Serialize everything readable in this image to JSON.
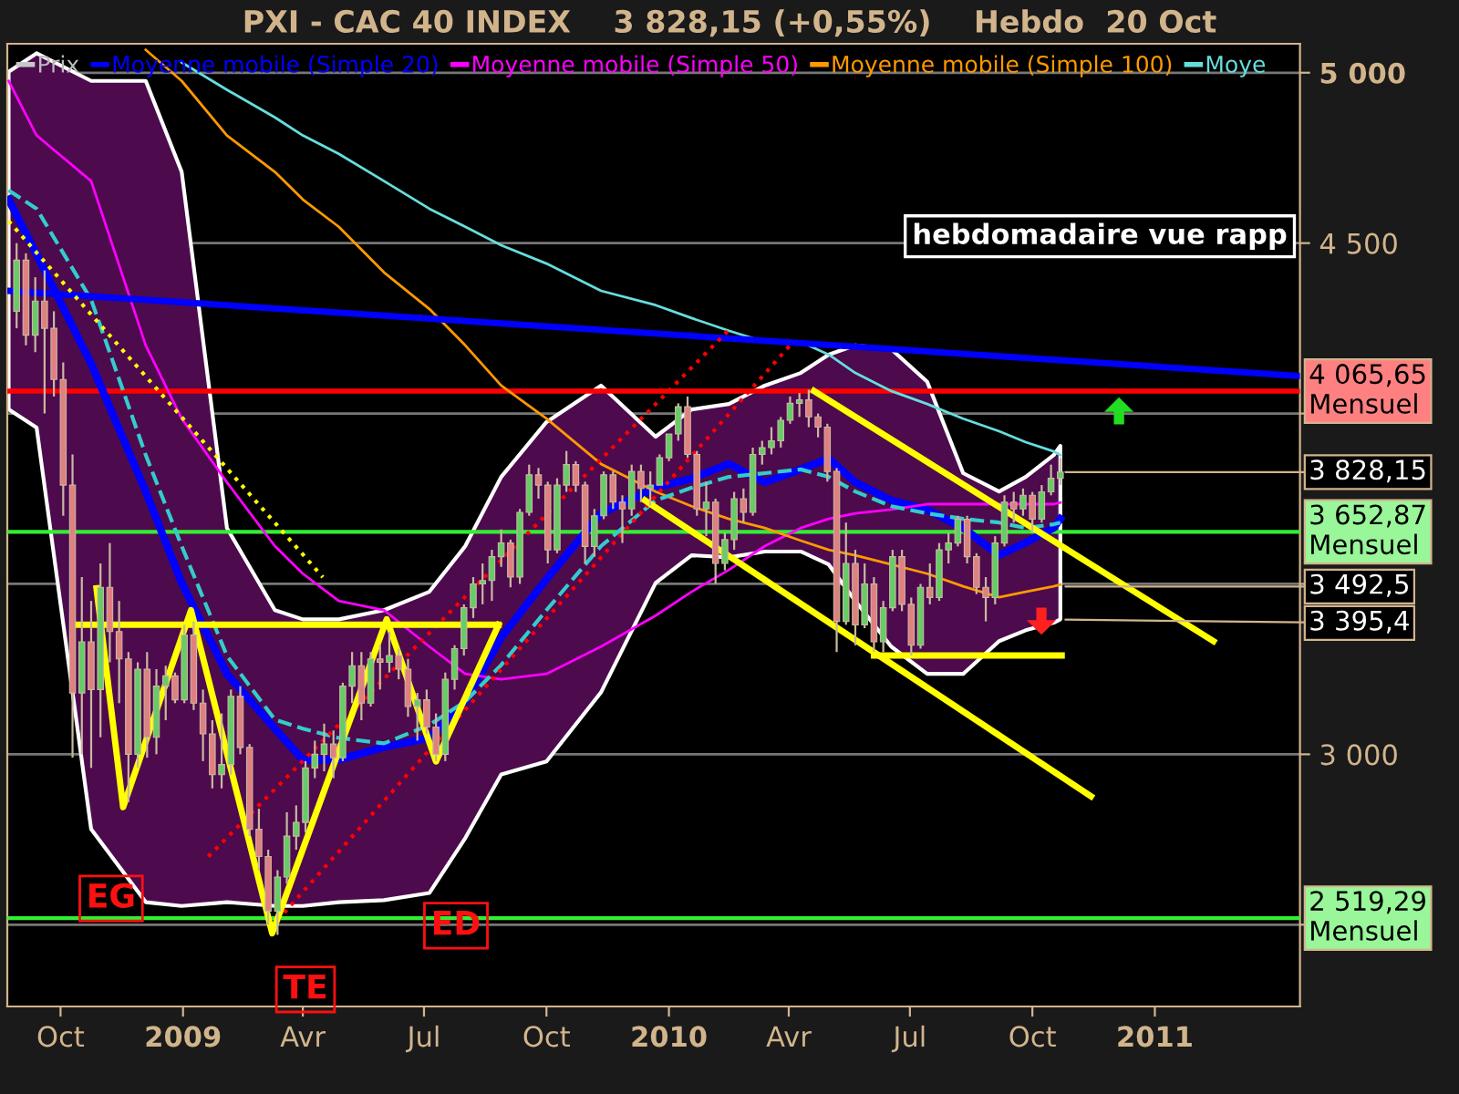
{
  "chart_data": {
    "type": "candlestick",
    "title": "PXI - CAC 40 INDEX    3 828,15 (+0,55%)    Hebdo  20 Oct",
    "xlim": [
      "2008-08-22",
      "2011-04-20"
    ],
    "xticks": [
      {
        "value": "2008-10-01",
        "label": "Oct"
      },
      {
        "value": "2009-01-01",
        "label": "2009"
      },
      {
        "value": "2009-04-01",
        "label": "Avr"
      },
      {
        "value": "2009-07-01",
        "label": "Jul"
      },
      {
        "value": "2009-10-01",
        "label": "Oct"
      },
      {
        "value": "2010-01-01",
        "label": "2010"
      },
      {
        "value": "2010-04-01",
        "label": "Avr"
      },
      {
        "value": "2010-07-01",
        "label": "Jul"
      },
      {
        "value": "2010-10-01",
        "label": "Oct"
      },
      {
        "value": "2011-01-01",
        "label": "2011"
      }
    ],
    "ylim": [
      2260,
      5085
    ],
    "yticks": [
      {
        "value": 2500,
        "label": null
      },
      {
        "value": 3000,
        "label": "3 000"
      },
      {
        "value": 3500,
        "label": null
      },
      {
        "value": 4000,
        "label": null
      },
      {
        "value": 4500,
        "label": "4 500"
      },
      {
        "value": 5000,
        "label": "5 000"
      }
    ],
    "grid": "y",
    "legend": "top left",
    "marker": "none",
    "series": [
      {
        "name": "Prix",
        "type": "candlestick",
        "x": [
          "2008-08-29",
          "2008-09-05",
          "2008-09-12",
          "2008-09-19",
          "2008-09-26",
          "2008-10-03",
          "2008-10-10",
          "2008-10-17",
          "2008-10-24",
          "2008-10-31",
          "2008-11-07",
          "2008-11-14",
          "2008-11-21",
          "2008-11-28",
          "2008-12-05",
          "2008-12-12",
          "2008-12-19",
          "2008-12-26",
          "2009-01-02",
          "2009-01-09",
          "2009-01-16",
          "2009-01-23",
          "2009-01-30",
          "2009-02-06",
          "2009-02-13",
          "2009-02-20",
          "2009-02-27",
          "2009-03-06",
          "2009-03-13",
          "2009-03-20",
          "2009-03-27",
          "2009-04-03",
          "2009-04-10",
          "2009-04-17",
          "2009-04-24",
          "2009-05-01",
          "2009-05-08",
          "2009-05-15",
          "2009-05-22",
          "2009-05-29",
          "2009-06-05",
          "2009-06-12",
          "2009-06-19",
          "2009-06-26",
          "2009-07-03",
          "2009-07-10",
          "2009-07-17",
          "2009-07-24",
          "2009-07-31",
          "2009-08-07",
          "2009-08-14",
          "2009-08-21",
          "2009-08-28",
          "2009-09-04",
          "2009-09-11",
          "2009-09-18",
          "2009-09-25",
          "2009-10-02",
          "2009-10-09",
          "2009-10-16",
          "2009-10-23",
          "2009-10-30",
          "2009-11-06",
          "2009-11-13",
          "2009-11-20",
          "2009-11-27",
          "2009-12-04",
          "2009-12-11",
          "2009-12-18",
          "2009-12-25",
          "2010-01-01",
          "2010-01-08",
          "2010-01-15",
          "2010-01-22",
          "2010-01-29",
          "2010-02-05",
          "2010-02-12",
          "2010-02-19",
          "2010-02-26",
          "2010-03-05",
          "2010-03-12",
          "2010-03-19",
          "2010-03-26",
          "2010-04-02",
          "2010-04-09",
          "2010-04-16",
          "2010-04-23",
          "2010-04-30",
          "2010-05-07",
          "2010-05-14",
          "2010-05-21",
          "2010-05-28",
          "2010-06-04",
          "2010-06-11",
          "2010-06-18",
          "2010-06-25",
          "2010-07-02",
          "2010-07-09",
          "2010-07-16",
          "2010-07-23",
          "2010-07-30",
          "2010-08-06",
          "2010-08-13",
          "2010-08-20",
          "2010-08-27",
          "2010-09-03",
          "2010-09-10",
          "2010-09-17",
          "2010-09-24",
          "2010-10-01",
          "2010-10-08",
          "2010-10-15",
          "2010-10-22"
        ],
        "ohlc": [
          [
            4300,
            4500,
            4250,
            4450
          ],
          [
            4450,
            4470,
            4200,
            4230
          ],
          [
            4230,
            4400,
            4180,
            4330
          ],
          [
            4330,
            4420,
            4000,
            4250
          ],
          [
            4250,
            4300,
            4050,
            4100
          ],
          [
            4100,
            4150,
            3700,
            3790
          ],
          [
            3790,
            3880,
            2990,
            3180
          ],
          [
            3180,
            3520,
            3000,
            3330
          ],
          [
            3330,
            3450,
            2960,
            3190
          ],
          [
            3190,
            3560,
            3050,
            3490
          ],
          [
            3490,
            3620,
            3270,
            3360
          ],
          [
            3360,
            3450,
            3150,
            3280
          ],
          [
            3280,
            3300,
            2860,
            3000
          ],
          [
            3000,
            3270,
            2960,
            3250
          ],
          [
            3250,
            3300,
            2990,
            3050
          ],
          [
            3050,
            3250,
            3000,
            3200
          ],
          [
            3200,
            3260,
            3100,
            3230
          ],
          [
            3230,
            3240,
            3150,
            3160
          ],
          [
            3160,
            3380,
            3150,
            3350
          ],
          [
            3350,
            3390,
            3130,
            3150
          ],
          [
            3150,
            3190,
            2980,
            3060
          ],
          [
            3060,
            3100,
            2900,
            2940
          ],
          [
            2940,
            3120,
            2900,
            2970
          ],
          [
            2970,
            3190,
            2940,
            3170
          ],
          [
            3170,
            3200,
            3000,
            3020
          ],
          [
            3020,
            3030,
            2760,
            2780
          ],
          [
            2780,
            2840,
            2660,
            2700
          ],
          [
            2700,
            2720,
            2500,
            2540
          ],
          [
            2540,
            2660,
            2470,
            2640
          ],
          [
            2640,
            2830,
            2620,
            2760
          ],
          [
            2760,
            2850,
            2720,
            2800
          ],
          [
            2800,
            2980,
            2770,
            2960
          ],
          [
            2960,
            3040,
            2930,
            3000
          ],
          [
            3000,
            3090,
            2950,
            3030
          ],
          [
            3030,
            3070,
            2930,
            2990
          ],
          [
            2990,
            3210,
            2980,
            3200
          ],
          [
            3200,
            3300,
            3150,
            3260
          ],
          [
            3260,
            3300,
            3100,
            3150
          ],
          [
            3150,
            3300,
            3140,
            3280
          ],
          [
            3280,
            3320,
            3190,
            3270
          ],
          [
            3270,
            3360,
            3240,
            3290
          ],
          [
            3290,
            3310,
            3220,
            3250
          ],
          [
            3250,
            3280,
            3110,
            3140
          ],
          [
            3140,
            3180,
            3040,
            3160
          ],
          [
            3160,
            3190,
            3060,
            3080
          ],
          [
            3080,
            3120,
            2980,
            3000
          ],
          [
            3000,
            3240,
            2980,
            3220
          ],
          [
            3220,
            3320,
            3190,
            3310
          ],
          [
            3310,
            3440,
            3290,
            3430
          ],
          [
            3430,
            3520,
            3400,
            3500
          ],
          [
            3500,
            3560,
            3440,
            3510
          ],
          [
            3510,
            3600,
            3450,
            3580
          ],
          [
            3580,
            3660,
            3550,
            3620
          ],
          [
            3620,
            3630,
            3490,
            3520
          ],
          [
            3520,
            3720,
            3500,
            3710
          ],
          [
            3710,
            3850,
            3700,
            3820
          ],
          [
            3820,
            3840,
            3750,
            3790
          ],
          [
            3790,
            3800,
            3560,
            3600
          ],
          [
            3600,
            3810,
            3590,
            3790
          ],
          [
            3790,
            3890,
            3770,
            3850
          ],
          [
            3850,
            3860,
            3770,
            3790
          ],
          [
            3790,
            3800,
            3560,
            3610
          ],
          [
            3610,
            3720,
            3580,
            3700
          ],
          [
            3700,
            3830,
            3690,
            3820
          ],
          [
            3820,
            3830,
            3720,
            3740
          ],
          [
            3740,
            3760,
            3620,
            3720
          ],
          [
            3720,
            3850,
            3700,
            3830
          ],
          [
            3830,
            3850,
            3740,
            3780
          ],
          [
            3780,
            3830,
            3730,
            3790
          ],
          [
            3790,
            3880,
            3790,
            3870
          ],
          [
            3870,
            3940,
            3860,
            3940
          ],
          [
            3940,
            4030,
            3920,
            4020
          ],
          [
            4020,
            4050,
            3870,
            3880
          ],
          [
            3880,
            3890,
            3700,
            3720
          ],
          [
            3720,
            3800,
            3640,
            3740
          ],
          [
            3740,
            3750,
            3500,
            3560
          ],
          [
            3560,
            3650,
            3540,
            3630
          ],
          [
            3630,
            3770,
            3600,
            3750
          ],
          [
            3750,
            3780,
            3680,
            3710
          ],
          [
            3710,
            3900,
            3700,
            3880
          ],
          [
            3880,
            3920,
            3850,
            3900
          ],
          [
            3900,
            3960,
            3880,
            3920
          ],
          [
            3920,
            3990,
            3900,
            3980
          ],
          [
            3980,
            4050,
            3970,
            4030
          ],
          [
            4030,
            4060,
            3990,
            4040
          ],
          [
            4040,
            4070,
            3960,
            3990
          ],
          [
            3990,
            4000,
            3930,
            3960
          ],
          [
            3960,
            3970,
            3800,
            3830
          ],
          [
            3830,
            3840,
            3300,
            3390
          ],
          [
            3390,
            3680,
            3380,
            3560
          ],
          [
            3560,
            3600,
            3320,
            3380
          ],
          [
            3380,
            3560,
            3370,
            3500
          ],
          [
            3500,
            3520,
            3300,
            3330
          ],
          [
            3330,
            3450,
            3300,
            3430
          ],
          [
            3430,
            3600,
            3420,
            3580
          ],
          [
            3580,
            3600,
            3420,
            3440
          ],
          [
            3440,
            3460,
            3290,
            3320
          ],
          [
            3320,
            3500,
            3310,
            3490
          ],
          [
            3490,
            3560,
            3440,
            3460
          ],
          [
            3460,
            3620,
            3450,
            3600
          ],
          [
            3600,
            3650,
            3560,
            3620
          ],
          [
            3620,
            3700,
            3610,
            3690
          ],
          [
            3690,
            3700,
            3560,
            3580
          ],
          [
            3580,
            3590,
            3470,
            3490
          ],
          [
            3490,
            3520,
            3390,
            3460
          ],
          [
            3460,
            3640,
            3440,
            3620
          ],
          [
            3620,
            3760,
            3610,
            3740
          ],
          [
            3740,
            3770,
            3680,
            3720
          ],
          [
            3720,
            3780,
            3700,
            3760
          ],
          [
            3760,
            3770,
            3650,
            3690
          ],
          [
            3690,
            3790,
            3680,
            3770
          ],
          [
            3770,
            3850,
            3760,
            3810
          ],
          [
            3810,
            3870,
            3790,
            3828.15
          ]
        ]
      },
      {
        "name": "Moyenne mobile (Simple 20)",
        "type": "line",
        "color": "#0000ff",
        "x": [
          "2008-08-23",
          "2008-09-13",
          "2008-10-24",
          "2008-12-04",
          "2008-12-31",
          "2009-02-03",
          "2009-03-11",
          "2009-04-01",
          "2009-04-28",
          "2009-06-01",
          "2009-07-05",
          "2009-08-01",
          "2009-08-28",
          "2009-10-01",
          "2009-11-11",
          "2009-12-22",
          "2010-01-18",
          "2010-02-15",
          "2010-03-14",
          "2010-04-10",
          "2010-05-01",
          "2010-05-21",
          "2010-06-17",
          "2010-07-14",
          "2010-08-10",
          "2010-09-06",
          "2010-09-26",
          "2010-10-17",
          "2010-10-22"
        ],
        "values": [
          4628,
          4467,
          4146,
          3771,
          3503,
          3236,
          3075,
          2984,
          2984,
          3021,
          3048,
          3155,
          3343,
          3514,
          3707,
          3782,
          3809,
          3852,
          3798,
          3836,
          3868,
          3798,
          3745,
          3718,
          3664,
          3584,
          3621,
          3664,
          3691
        ],
        "lower": [
          4012,
          3959,
          2780,
          2566,
          2555,
          2566,
          2555,
          2555,
          2566,
          2572,
          2593,
          2754,
          2941,
          2979,
          3182,
          3503,
          3584,
          3578,
          3595,
          3595,
          3557,
          3450,
          3316,
          3236,
          3236,
          3332,
          3364,
          3386,
          3396
        ],
        "upper": [
          5003,
          5057,
          4976,
          4976,
          4709,
          3664,
          3423,
          3396,
          3396,
          3423,
          3477,
          3611,
          3814,
          3975,
          4082,
          3932,
          4012,
          4028,
          4082,
          4119,
          4173,
          4200,
          4189,
          4093,
          3825,
          3771,
          3814,
          3878,
          3905
        ]
      },
      {
        "name": "Moyenne mobile (Simple 50)",
        "type": "line",
        "color": "#ff00ff",
        "x": [
          "2008-08-23",
          "2008-09-13",
          "2008-10-24",
          "2008-12-04",
          "2008-12-31",
          "2009-02-03",
          "2009-03-11",
          "2009-04-01",
          "2009-04-28",
          "2009-06-01",
          "2009-07-05",
          "2009-08-01",
          "2009-08-28",
          "2009-10-01",
          "2009-11-11",
          "2009-12-22",
          "2010-01-18",
          "2010-02-15",
          "2010-03-14",
          "2010-04-10",
          "2010-05-01",
          "2010-05-21",
          "2010-06-17",
          "2010-07-14",
          "2010-08-10",
          "2010-09-06",
          "2010-09-26",
          "2010-10-17",
          "2010-10-22"
        ],
        "values": [
          4976,
          4816,
          4682,
          4200,
          3985,
          3798,
          3611,
          3530,
          3450,
          3423,
          3316,
          3236,
          3220,
          3236,
          3316,
          3407,
          3477,
          3541,
          3611,
          3664,
          3691,
          3707,
          3718,
          3734,
          3734,
          3734,
          3734,
          3734,
          3739
        ]
      },
      {
        "name": "Moyenne mobile (Simple 100)",
        "type": "line",
        "color": "#ff9900",
        "x": [
          "2008-12-04",
          "2008-12-31",
          "2009-02-03",
          "2009-03-11",
          "2009-04-01",
          "2009-04-28",
          "2009-06-01",
          "2009-07-05",
          "2009-08-01",
          "2009-08-28",
          "2009-10-01",
          "2009-11-11",
          "2009-12-22",
          "2010-01-18",
          "2010-02-15",
          "2010-03-14",
          "2010-04-10",
          "2010-05-01",
          "2010-05-21",
          "2010-06-17",
          "2010-07-14",
          "2010-08-10",
          "2010-09-06",
          "2010-09-26",
          "2010-10-17",
          "2010-10-22"
        ],
        "values": [
          5067,
          4976,
          4816,
          4709,
          4628,
          4548,
          4414,
          4307,
          4200,
          4082,
          3985,
          3852,
          3771,
          3728,
          3691,
          3664,
          3627,
          3600,
          3584,
          3557,
          3530,
          3493,
          3461,
          3477,
          3493,
          3498
        ]
      },
      {
        "name": "Moye",
        "type": "line",
        "color": "#66dddd",
        "x": [
          "2008-12-31",
          "2009-02-03",
          "2009-03-11",
          "2009-04-01",
          "2009-04-28",
          "2009-06-01",
          "2009-07-05",
          "2009-08-01",
          "2009-08-28",
          "2009-10-01",
          "2009-11-11",
          "2009-12-22",
          "2010-01-18",
          "2010-02-15",
          "2010-03-14",
          "2010-04-10",
          "2010-05-01",
          "2010-05-21",
          "2010-06-17",
          "2010-07-14",
          "2010-08-10",
          "2010-09-06",
          "2010-09-26",
          "2010-10-17",
          "2010-10-22"
        ],
        "values": [
          5030,
          4950,
          4869,
          4816,
          4762,
          4682,
          4601,
          4548,
          4494,
          4440,
          4360,
          4318,
          4280,
          4243,
          4210,
          4210,
          4173,
          4119,
          4066,
          4028,
          3985,
          3948,
          3916,
          3889,
          3878
        ]
      },
      {
        "type": "line",
        "color": "#33cccc",
        "line_style": "dashed",
        "x": [
          "2008-08-23",
          "2008-09-13",
          "2008-10-24",
          "2008-12-04",
          "2008-12-31",
          "2009-02-03",
          "2009-03-11",
          "2009-04-01",
          "2009-04-28",
          "2009-06-01",
          "2009-07-05",
          "2009-08-01",
          "2009-08-28",
          "2009-10-01",
          "2009-11-11",
          "2009-12-22",
          "2010-01-18",
          "2010-02-15",
          "2010-03-14",
          "2010-04-10",
          "2010-05-01",
          "2010-05-21",
          "2010-06-17",
          "2010-07-14",
          "2010-08-10",
          "2010-09-06",
          "2010-09-26",
          "2010-10-17",
          "2010-10-22"
        ],
        "values": [
          4655,
          4601,
          4334,
          3878,
          3611,
          3289,
          3102,
          3075,
          3048,
          3032,
          3086,
          3155,
          3262,
          3423,
          3611,
          3745,
          3782,
          3814,
          3825,
          3836,
          3814,
          3771,
          3728,
          3707,
          3691,
          3680,
          3664,
          3675,
          3680
        ]
      },
      {
        "type": "line",
        "color": "#0000ff",
        "line_style": "solid",
        "x": [
          "2008-08-23",
          "2011-04-20"
        ],
        "values": [
          4360,
          4110
        ]
      },
      {
        "type": "line",
        "color": "#ffff00",
        "line_style": "dotted",
        "x": [
          "2008-08-23",
          "2009-04-16"
        ],
        "values": [
          4565,
          3520
        ]
      },
      {
        "type": "line",
        "color": "#ff0000",
        "line_style": "dotted",
        "x": [
          "2009-01-20",
          "2010-02-17"
        ],
        "values": [
          2700,
          4253
        ]
      },
      {
        "type": "line",
        "color": "#ff0000",
        "line_style": "dotted",
        "x": [
          "2009-03-13",
          "2010-04-02"
        ],
        "values": [
          2513,
          4200
        ]
      },
      {
        "type": "line",
        "color": "#ffff00",
        "line_style": "solid",
        "x": [
          "2008-10-28",
          "2008-11-17",
          "2009-01-07",
          "2009-03-09",
          "2009-06-03",
          "2009-07-10",
          "2009-08-26"
        ],
        "values": [
          3487,
          2845,
          3423,
          2475,
          3396,
          2979,
          3380
        ]
      },
      {
        "type": "line",
        "color": "#ffff00",
        "line_style": "solid",
        "x": [
          "2008-10-14",
          "2009-08-26"
        ],
        "values": [
          3380,
          3380
        ]
      },
      {
        "type": "line",
        "color": "#ffff00",
        "line_style": "solid",
        "x": [
          "2010-04-20",
          "2011-02-14"
        ],
        "values": [
          4066,
          3332
        ]
      },
      {
        "type": "line",
        "color": "#ffff00",
        "line_style": "solid",
        "x": [
          "2009-12-14",
          "2010-11-14"
        ],
        "values": [
          3745,
          2877
        ]
      },
      {
        "type": "line",
        "color": "#ffff00",
        "line_style": "solid",
        "x": [
          "2010-06-04",
          "2010-10-23"
        ],
        "values": [
          3290,
          3290
        ]
      }
    ],
    "ref_lines": [
      {
        "axis": "y",
        "value": 4065.65,
        "label": "4 065,65\nMensuel",
        "color": "#ff0000"
      },
      {
        "axis": "y",
        "value": 3652.87,
        "label": "3 652,87\nMensuel",
        "color": "#33ee33"
      },
      {
        "axis": "y",
        "value": 2519.29,
        "label": "2 519,29\nMensuel",
        "color": "#33ee33"
      }
    ],
    "annotations": [
      "hebdomadaire vue rapp",
      {
        "text": "3 828,15",
        "x": "2010-10-22",
        "y": 3828.15
      },
      {
        "text": "3 492,5",
        "x": "2010-10-22",
        "y": 3492.5
      },
      {
        "text": "3 395,4",
        "x": "2010-10-22",
        "y": 3395.4
      },
      {
        "text": "EG",
        "x": "2008-11-08",
        "y": 2577
      },
      {
        "text": "TE",
        "x": "2009-04-03",
        "y": 2310
      },
      {
        "text": "ED",
        "x": "2009-07-25",
        "y": 2497
      }
    ]
  }
}
